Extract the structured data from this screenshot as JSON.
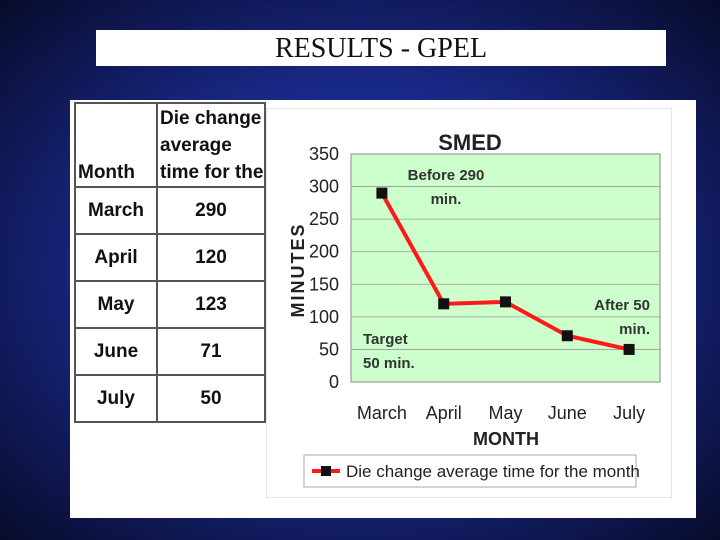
{
  "slide": {
    "title": "RESULTS - GPEL"
  },
  "table": {
    "headers": [
      "Month",
      "Die change average time for the"
    ],
    "rows": [
      {
        "month": "March",
        "value": "290"
      },
      {
        "month": "April",
        "value": "120"
      },
      {
        "month": "May",
        "value": "123"
      },
      {
        "month": "June",
        "value": "71"
      },
      {
        "month": "July",
        "value": "50"
      }
    ]
  },
  "chart_data": {
    "type": "line",
    "title": "SMED",
    "xlabel": "MONTH",
    "ylabel": "MINUTES",
    "categories": [
      "March",
      "April",
      "May",
      "June",
      "July"
    ],
    "ylim": [
      0,
      350
    ],
    "yticks": [
      "0",
      "50",
      "100",
      "150",
      "200",
      "250",
      "300",
      "350"
    ],
    "grid": true,
    "legend_position": "bottom",
    "series": [
      {
        "name": "Die change average time for the month",
        "values": [
          290,
          120,
          123,
          71,
          50
        ],
        "color": "#ff1a1a",
        "marker_color": "#111111"
      }
    ],
    "plot_background": "#ccffcc",
    "annotations": [
      {
        "text_lines": [
          "Before 290",
          "min."
        ]
      },
      {
        "text_lines": [
          "After 50",
          "min."
        ]
      },
      {
        "text_lines": [
          "Target",
          "50 min."
        ]
      }
    ]
  }
}
